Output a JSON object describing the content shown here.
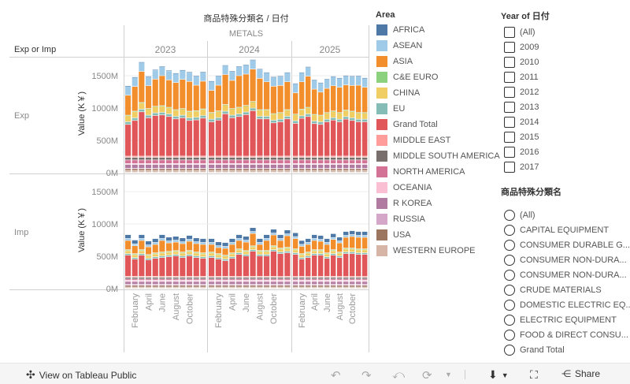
{
  "header": {
    "title": "商品特殊分類名 / 日付",
    "category": "METALS",
    "row_header": "Exp or Imp",
    "years": [
      "2023",
      "2024",
      "2025"
    ]
  },
  "rows": [
    "Exp",
    "Imp"
  ],
  "legend": {
    "title": "Area",
    "items": [
      {
        "label": "AFRICA",
        "color": "#4e79a7"
      },
      {
        "label": "ASEAN",
        "color": "#a0cbe8"
      },
      {
        "label": "ASIA",
        "color": "#f28e2b"
      },
      {
        "label": "C&E EURO",
        "color": "#8cd17d"
      },
      {
        "label": "CHINA",
        "color": "#f1ce63"
      },
      {
        "label": "EU",
        "color": "#86bcb6"
      },
      {
        "label": "Grand Total",
        "color": "#e15759"
      },
      {
        "label": "MIDDLE EAST",
        "color": "#ff9d9a"
      },
      {
        "label": "MIDDLE SOUTH AMERICA",
        "color": "#79706e"
      },
      {
        "label": "NORTH AMERICA",
        "color": "#d37295"
      },
      {
        "label": "OCEANIA",
        "color": "#fabfd2"
      },
      {
        "label": "R KOREA",
        "color": "#b07aa1"
      },
      {
        "label": "RUSSIA",
        "color": "#d4a6c8"
      },
      {
        "label": "USA",
        "color": "#9d7660"
      },
      {
        "label": "WESTERN EUROPE",
        "color": "#d7b5a6"
      }
    ]
  },
  "year_filter": {
    "title": "Year of 日付",
    "items": [
      "(All)",
      "2009",
      "2010",
      "2011",
      "2012",
      "2013",
      "2014",
      "2015",
      "2016",
      "2017"
    ]
  },
  "category_filter": {
    "title": "商品特殊分類名",
    "items": [
      "(All)",
      "CAPITAL EQUIPMENT",
      "CONSUMER DURABLE G...",
      "CONSUMER NON-DURA...",
      "CONSUMER NON-DURA...",
      "CRUDE MATERIALS",
      "DOMESTIC ELECTRIC EQ...",
      "ELECTRIC EQUIPMENT",
      "FOOD & DIRECT CONSU...",
      "Grand Total"
    ]
  },
  "toolbar": {
    "view_label": "View on Tableau Public",
    "share_label": "Share"
  },
  "chart_data": {
    "type": "bar",
    "stacked": true,
    "ylabel": "Value (K￥)",
    "ylim": [
      0,
      1800
    ],
    "y_ticks": [
      "0M",
      "500M",
      "1000M",
      "1500M"
    ],
    "y_tick_values": [
      0,
      500,
      1000,
      1500
    ],
    "x_tick_labels": [
      "February",
      "April",
      "June",
      "August",
      "October"
    ],
    "months_per_year": 12,
    "panels": [
      {
        "name": "Exp",
        "series": {
          "WESTERN EUROPE": 30,
          "USA": 25,
          "RUSSIA": 8,
          "R KOREA": 60,
          "OCEANIA": 15,
          "NORTH AMERICA": 55,
          "MIDDLE SOUTH AMERICA": 40,
          "MIDDLE EAST": 20,
          "Grand Total": [
            490,
            551,
            685,
            592,
            628,
            636,
            612,
            575,
            592,
            551,
            559,
            587,
            530,
            555,
            653,
            592,
            612,
            641,
            702,
            575,
            575,
            514,
            530,
            575,
            506,
            583,
            612,
            502,
            490,
            530,
            555,
            530,
            571,
            551,
            530,
            530
          ],
          "EU": 40,
          "CHINA": 95,
          "C&E EURO": 8,
          "ASIA": [
            308,
            382,
            481,
            353,
            419,
            464,
            423,
            419,
            451,
            460,
            394,
            428,
            342,
            398,
            464,
            435,
            488,
            484,
            500,
            484,
            431,
            423,
            419,
            431,
            329,
            423,
            480,
            390,
            357,
            374,
            390,
            391,
            386,
            398,
            423,
            391
          ],
          "ASEAN": 140,
          "AFRICA": 8
        }
      },
      {
        "name": "Imp",
        "series": {
          "WESTERN EUROPE": 20,
          "USA": 25,
          "RUSSIA": 20,
          "R KOREA": 40,
          "OCEANIA": 20,
          "NORTH AMERICA": 20,
          "MIDDLE SOUTH AMERICA": 25,
          "MIDDLE EAST": 15,
          "Grand Total": [
            327,
            266,
            327,
            254,
            278,
            291,
            303,
            315,
            291,
            315,
            291,
            278,
            291,
            266,
            242,
            278,
            340,
            315,
            388,
            315,
            315,
            388,
            352,
            364,
            340,
            266,
            291,
            327,
            327,
            278,
            327,
            291,
            352,
            352,
            340,
            340
          ],
          "EU": 25,
          "CHINA": 45,
          "C&E EURO": 15,
          "ASIA": [
            143,
            122,
            143,
            118,
            131,
            179,
            130,
            130,
            130,
            143,
            130,
            131,
            118,
            94,
            106,
            131,
            130,
            130,
            191,
            94,
            155,
            167,
            118,
            179,
            160,
            114,
            118,
            143,
            131,
            131,
            159,
            142,
            167,
            179,
            179,
            179
          ],
          "ASEAN": 30,
          "AFRICA": 60
        }
      }
    ]
  }
}
